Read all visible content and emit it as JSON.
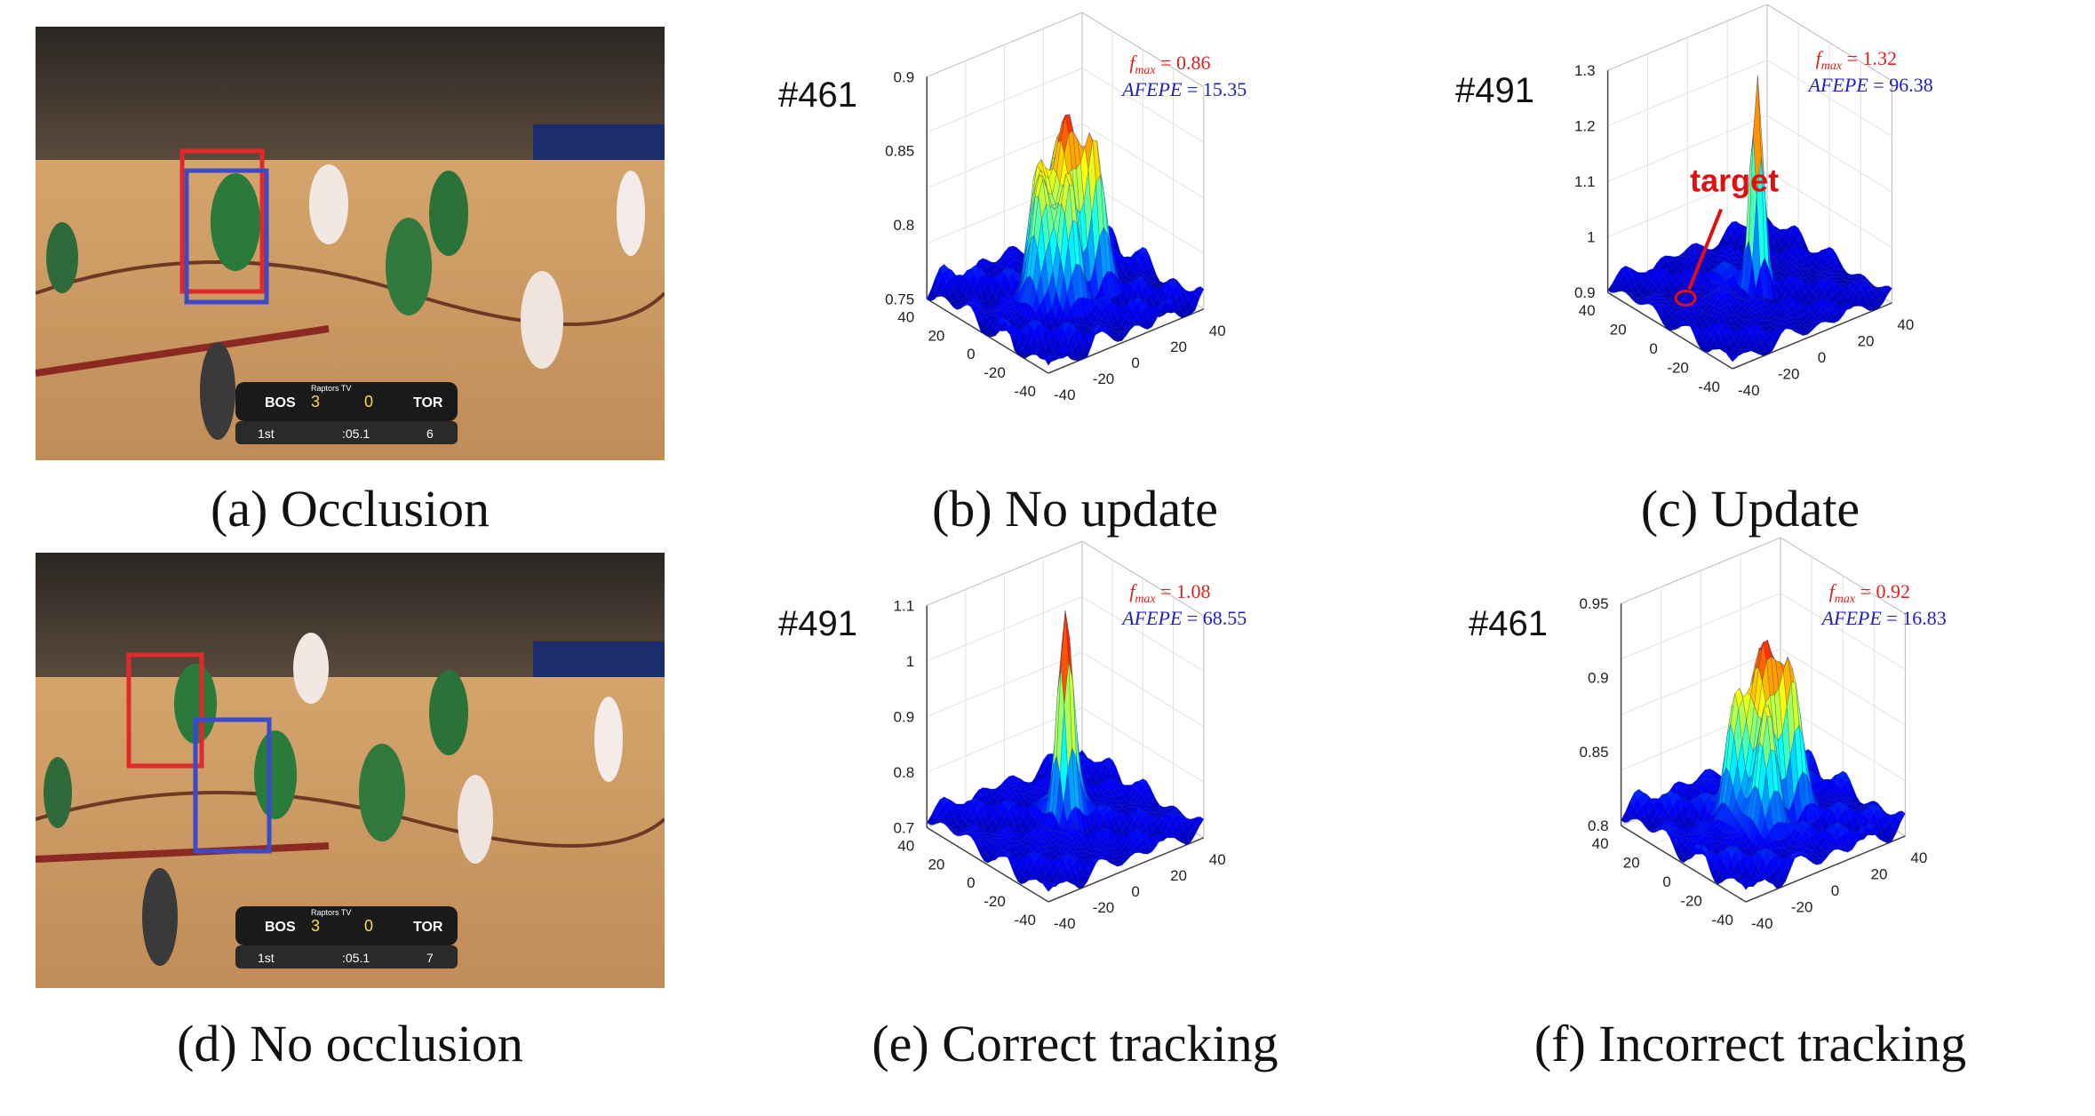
{
  "figure": {
    "panels": [
      {
        "id": "a",
        "caption": "(a) Occlusion",
        "kind": "photo",
        "scoreboard": {
          "away": "BOS",
          "home": "TOR",
          "away_score": "3",
          "home_score": "0",
          "period": "1st",
          "clock": ":05.1",
          "shot_clock": "6",
          "network": "Raptors TV"
        },
        "boxes": [
          {
            "color": "#e02a2a"
          },
          {
            "color": "#3a4ac8"
          }
        ]
      },
      {
        "id": "b",
        "caption": "(b) No update",
        "kind": "surface",
        "frame": "#461",
        "fmax_label": "f",
        "fmax_sub": "max",
        "fmax_value": "= 0.86",
        "afepe_label": "AFEPE",
        "afepe_value": "= 15.35",
        "z_ticks": [
          "0.9",
          "0.85",
          "0.8",
          "0.75"
        ],
        "chart_ref": 0
      },
      {
        "id": "c",
        "caption": "(c) Update",
        "kind": "surface",
        "frame": "#491",
        "fmax_label": "f",
        "fmax_sub": "max",
        "fmax_value": "= 1.32",
        "afepe_label": "AFEPE",
        "afepe_value": "= 96.38",
        "z_ticks": [
          "1.3",
          "1.2",
          "1.1",
          "1",
          "0.9"
        ],
        "target_label": "target",
        "chart_ref": 1
      },
      {
        "id": "d",
        "caption": "(d) No occlusion",
        "kind": "photo",
        "scoreboard": {
          "away": "BOS",
          "home": "TOR",
          "away_score": "3",
          "home_score": "0",
          "period": "1st",
          "clock": ":05.1",
          "shot_clock": "7",
          "network": "Raptors TV"
        },
        "boxes": [
          {
            "color": "#e02a2a"
          },
          {
            "color": "#3a4ac8"
          }
        ]
      },
      {
        "id": "e",
        "caption": "(e) Correct tracking",
        "kind": "surface",
        "frame": "#491",
        "fmax_label": "f",
        "fmax_sub": "max",
        "fmax_value": "= 1.08",
        "afepe_label": "AFEPE",
        "afepe_value": "= 68.55",
        "z_ticks": [
          "1.1",
          "1",
          "0.9",
          "0.8",
          "0.7"
        ],
        "chart_ref": 2
      },
      {
        "id": "f",
        "caption": "(f) Incorrect tracking",
        "kind": "surface",
        "frame": "#461",
        "fmax_label": "f",
        "fmax_sub": "max",
        "fmax_value": "= 0.92",
        "afepe_label": "AFEPE",
        "afepe_value": "= 16.83",
        "z_ticks": [
          "0.95",
          "0.9",
          "0.85",
          "0.8"
        ],
        "chart_ref": 3
      }
    ],
    "axis_ticks": {
      "x": [
        "40",
        "20",
        "0",
        "-20",
        "-40"
      ],
      "y": [
        "-40",
        "-20",
        "0",
        "20",
        "40"
      ]
    }
  },
  "chart_data": [
    {
      "type": "surface",
      "zlim": [
        0.75,
        0.9
      ],
      "xlim": [
        -40,
        40
      ],
      "ylim": [
        -40,
        40
      ],
      "peaks": "multiple",
      "peak_value": 0.86
    },
    {
      "type": "surface",
      "zlim": [
        0.9,
        1.3
      ],
      "xlim": [
        -40,
        40
      ],
      "ylim": [
        -40,
        40
      ],
      "peaks": "single",
      "peak_value": 1.32
    },
    {
      "type": "surface",
      "zlim": [
        0.7,
        1.1
      ],
      "xlim": [
        -40,
        40
      ],
      "ylim": [
        -40,
        40
      ],
      "peaks": "single",
      "peak_value": 1.08
    },
    {
      "type": "surface",
      "zlim": [
        0.8,
        0.95
      ],
      "xlim": [
        -40,
        40
      ],
      "ylim": [
        -40,
        40
      ],
      "peaks": "multiple",
      "peak_value": 0.92
    }
  ],
  "colors": {
    "occlusion_box": "#e02a2a",
    "tracker_box": "#3a4ac8",
    "surface_low": "#2a3ad0",
    "surface_high": "#e02020"
  }
}
